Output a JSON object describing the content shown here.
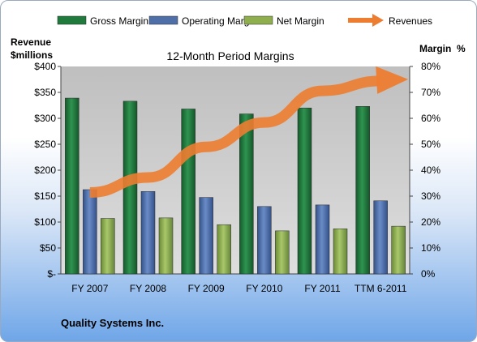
{
  "chart_data": {
    "type": "bar",
    "title": "12-Month Period Margins",
    "footer": "Quality Systems Inc.",
    "categories": [
      "FY 2007",
      "FY 2008",
      "FY 2009",
      "FY 2010",
      "FY 2011",
      "TTM 6-2011"
    ],
    "ylabel_left": [
      "Revenue",
      "$millions"
    ],
    "ylabel_right": "Margin  %",
    "ylim_left": [
      0,
      400
    ],
    "ylim_right": [
      0,
      80
    ],
    "left_ticks": [
      "$-",
      "$50",
      "$100",
      "$150",
      "$200",
      "$250",
      "$300",
      "$350",
      "$400"
    ],
    "right_ticks": [
      "0%",
      "10%",
      "20%",
      "30%",
      "40%",
      "50%",
      "60%",
      "70%",
      "80%"
    ],
    "grid": false,
    "legend_position": "top",
    "series": [
      {
        "name": "Gross Margin",
        "axis": "right",
        "color": "#1f7a3c",
        "values": [
          67.8,
          66.6,
          63.6,
          61.7,
          64.0,
          64.6
        ]
      },
      {
        "name": "Operating Margin",
        "axis": "right",
        "color": "#4f6fa8",
        "values": [
          32.5,
          31.8,
          29.5,
          26.0,
          26.6,
          28.2
        ]
      },
      {
        "name": "Net Margin",
        "axis": "right",
        "color": "#8fae4e",
        "values": [
          21.4,
          21.6,
          19.0,
          16.6,
          17.4,
          18.4
        ]
      },
      {
        "name": "Revenues",
        "axis": "left",
        "type": "line",
        "color": "#ed7d31",
        "values": [
          157,
          186,
          245,
          292,
          353,
          372
        ]
      }
    ]
  }
}
